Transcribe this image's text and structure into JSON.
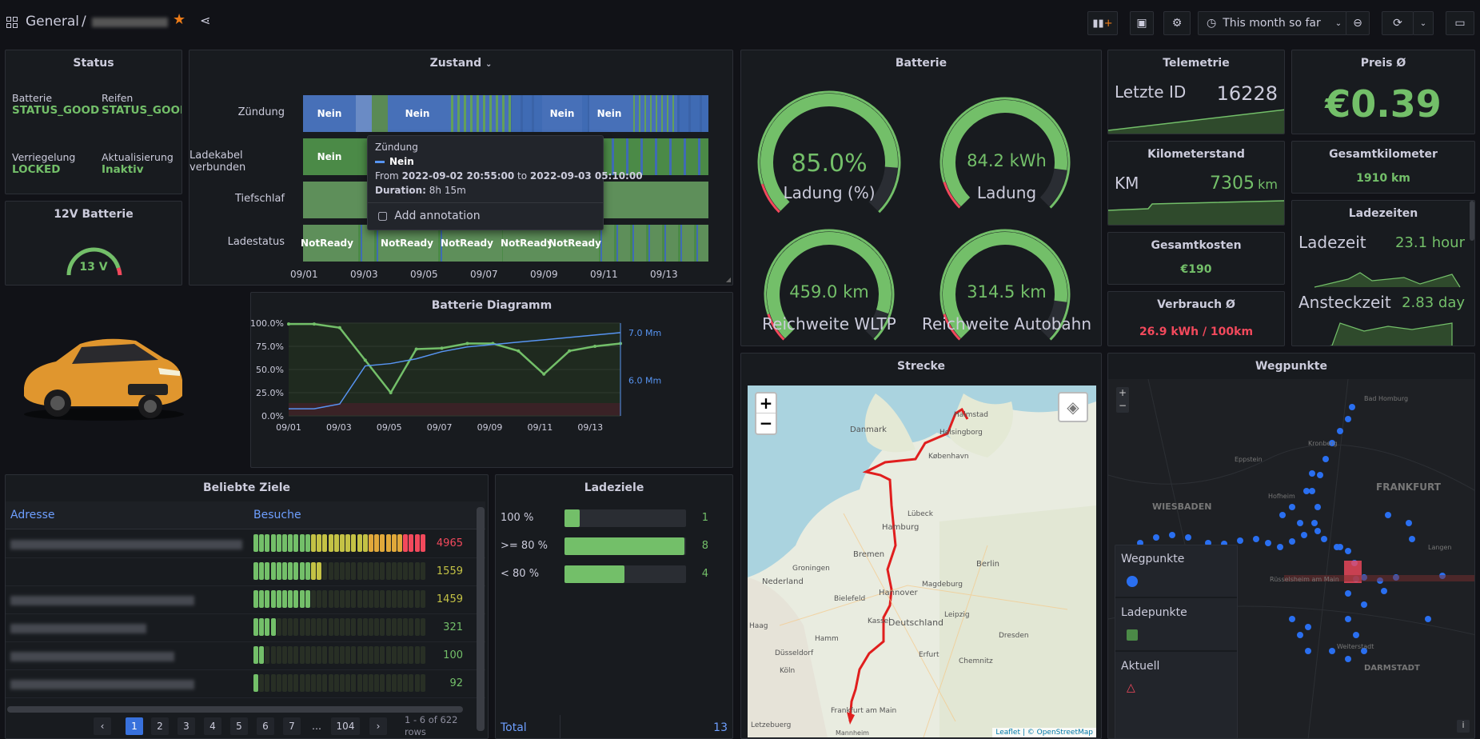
{
  "header": {
    "title": "General",
    "separator": "/",
    "timepicker": "This month so far"
  },
  "status": {
    "title": "Status",
    "items": [
      {
        "label": "Batterie",
        "value": "STATUS_GOOD"
      },
      {
        "label": "Reifen",
        "value": "STATUS_GOOD"
      },
      {
        "label": "Verriegelung",
        "value": "LOCKED"
      },
      {
        "label": "Aktualisierung",
        "value": "Inaktiv"
      }
    ]
  },
  "battery12v": {
    "title": "12V Batterie",
    "value": "13 V"
  },
  "zustand": {
    "title": "Zustand",
    "rows": [
      "Zündung",
      "Ladekabel verbunden",
      "Tiefschlaf",
      "Ladestatus"
    ],
    "nein": "Nein",
    "notready": "NotReady",
    "ticks": [
      "09/01",
      "09/03",
      "09/05",
      "09/07",
      "09/09",
      "09/11",
      "09/13"
    ],
    "tooltip": {
      "title": "Zündung",
      "series": "Nein",
      "from_label": "From",
      "from": "2022-09-02 20:55:00",
      "to_label": "to",
      "to": "2022-09-03 05:10:00",
      "duration_label": "Duration:",
      "duration": "8h 15m",
      "annotation": "Add annotation"
    }
  },
  "batterie": {
    "title": "Batterie",
    "gauges": [
      {
        "value": "85.0%",
        "label": "Ladung (%)",
        "fill": 0.85
      },
      {
        "value": "84.2 kWh",
        "label": "Ladung",
        "fill": 0.86
      },
      {
        "value": "459.0 km",
        "label": "Reichweite WLTP",
        "fill": 0.9
      },
      {
        "value": "314.5 km",
        "label": "Reichweite Autobahn",
        "fill": 0.86
      }
    ]
  },
  "telemetrie": {
    "title": "Telemetrie",
    "label": "Letzte ID",
    "value": "16228"
  },
  "preis": {
    "title": "Preis Ø",
    "value": "€0.39"
  },
  "kilometerstand": {
    "title": "Kilometerstand",
    "label": "KM",
    "value": "7305",
    "unit": "km"
  },
  "gesamtkilometer": {
    "title": "Gesamtkilometer",
    "value": "1910 km"
  },
  "gesamtkosten": {
    "title": "Gesamtkosten",
    "value": "€190"
  },
  "ladezeiten": {
    "title": "Ladezeiten",
    "items": [
      {
        "label": "Ladezeit",
        "value": "23.1",
        "unit": "hour"
      },
      {
        "label": "Ansteckzeit",
        "value": "2.83",
        "unit": "day"
      }
    ]
  },
  "verbrauch": {
    "title": "Verbrauch Ø",
    "value": "26.9 kWh / 100km"
  },
  "diagramm": {
    "title": "Batterie Diagramm",
    "y_ticks": [
      "100.0%",
      "75.0%",
      "50.0%",
      "25.0%",
      "0.0%"
    ],
    "y2_ticks": [
      "7.0 Mm",
      "6.0 Mm"
    ],
    "x_ticks": [
      "09/01",
      "09/03",
      "09/05",
      "09/07",
      "09/09",
      "09/11",
      "09/13"
    ]
  },
  "chart_data": {
    "type": "line",
    "x": [
      "09/01",
      "09/02",
      "09/03",
      "09/04",
      "09/05",
      "09/06",
      "09/07",
      "09/08",
      "09/09",
      "09/10",
      "09/11",
      "09/12",
      "09/13",
      "09/14"
    ],
    "series": [
      {
        "values": [
          99,
          99,
          95,
          60,
          25,
          72,
          73,
          78,
          78,
          70,
          45,
          70,
          75,
          78
        ]
      },
      {
        "values": [
          5.4,
          5.4,
          5.5,
          6.3,
          6.35,
          6.45,
          6.6,
          6.7,
          6.75,
          6.8,
          6.85,
          6.9,
          6.95,
          7.0
        ]
      }
    ],
    "ylim": [
      0,
      100
    ]
  },
  "ziele": {
    "title": "Beliebte Ziele",
    "col_address": "Adresse",
    "col_visits": "Besuche",
    "rows": [
      {
        "visits": "4965"
      },
      {
        "visits": "1559"
      },
      {
        "visits": "1459"
      },
      {
        "visits": "321"
      },
      {
        "visits": "100"
      },
      {
        "visits": "92"
      }
    ],
    "pages": [
      "1",
      "2",
      "3",
      "4",
      "5",
      "6",
      "7",
      "…",
      "104"
    ],
    "rows_info": "1 - 6 of 622",
    "rows_word": "rows"
  },
  "ladeziele": {
    "title": "Ladeziele",
    "rows": [
      {
        "label": "100 %",
        "value": "1",
        "fraction": 0.125
      },
      {
        "label": ">= 80 %",
        "value": "8",
        "fraction": 1
      },
      {
        "label": "< 80 %",
        "value": "4",
        "fraction": 0.5
      }
    ],
    "total_label": "Total",
    "total": "13"
  },
  "strecke": {
    "title": "Strecke",
    "zoom_in": "+",
    "zoom_out": "−",
    "attribution": "Leaflet | © OpenStreetMap",
    "places": [
      "Danmark",
      "Helsingborg",
      "Halmstad",
      "København",
      "Hamburg",
      "Lübeck",
      "Bremen",
      "Berlin",
      "Hannover",
      "Deutschland",
      "Kassel",
      "Leipzig",
      "Dresden",
      "Nederland",
      "Düsseldorf",
      "Frankfurt am Main",
      "Groningen",
      "Magdeburg",
      "Erfurt",
      "Chemnitz",
      "Haag",
      "Mannheim",
      "Letzebuerg",
      "Köln",
      "Hamm",
      "Bielefeld"
    ]
  },
  "wegpunkte": {
    "title": "Wegpunkte",
    "legend": [
      "Wegpunkte",
      "Ladepunkte",
      "Aktuell"
    ],
    "places": [
      "WIESBADEN",
      "FRANKFURT",
      "Bad Homburg",
      "Kronberg",
      "Eppstein",
      "Hofheim",
      "Rüsselsheim am Main",
      "Langen",
      "Weiterstadt",
      "DARMSTADT"
    ]
  }
}
